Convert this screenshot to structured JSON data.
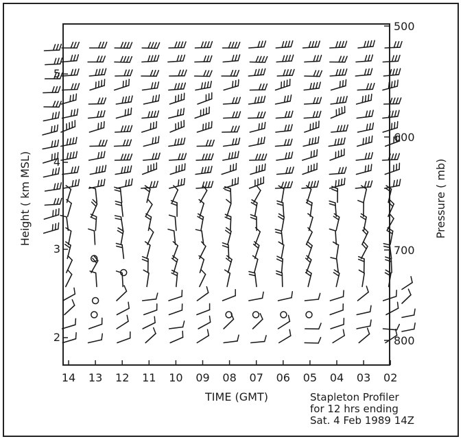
{
  "chart_data": {
    "type": "wind-profiler",
    "title": "",
    "xlabel": "TIME (GMT)",
    "ylabel_left": "Height ( km MSL)",
    "ylabel_right": "Pressure ( mb)",
    "x_ticks": [
      "14",
      "13",
      "12",
      "11",
      "10",
      "09",
      "08",
      "07",
      "06",
      "05",
      "04",
      "03",
      "02"
    ],
    "height_ticks_km": [
      "5",
      "4",
      "3",
      "2"
    ],
    "pressure_ticks_mb": [
      "500",
      "600",
      "700",
      "800"
    ],
    "caption": [
      "Stapleton Profiler",
      "for 12 hrs ending",
      "Sat. 4 Feb 1989 14Z"
    ],
    "rows": 22,
    "upper_levels": 11,
    "calm_markers": [
      {
        "time": "13",
        "level": 15
      },
      {
        "time": "12",
        "level": 16
      },
      {
        "time": "13",
        "level": 18
      },
      {
        "time": "13",
        "level": 19
      },
      {
        "time": "08",
        "level": 19
      },
      {
        "time": "07",
        "level": 19
      },
      {
        "time": "06",
        "level": 19
      },
      {
        "time": "05",
        "level": 19
      }
    ]
  }
}
